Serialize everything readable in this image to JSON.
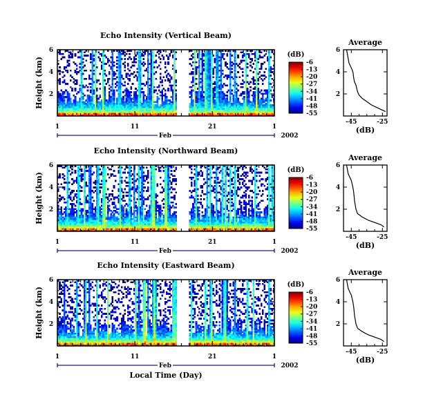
{
  "figure": {
    "background": "#ffffff"
  },
  "chart_data": [
    {
      "type": "heatmap",
      "title": "Echo Intensity (Vertical Beam)",
      "ylabel": "Height (km)",
      "y_ticks": [
        "6",
        "4",
        "2"
      ],
      "ylim": [
        0,
        6
      ],
      "x_ticks": [
        "1",
        "11",
        "21",
        "1"
      ],
      "x_month_label": "Feb",
      "year_label": "2002",
      "xlabel": "",
      "colorbar": {
        "unit": "(dB)",
        "ticks": [
          "-6",
          "-13",
          "-20",
          "-27",
          "-34",
          "-41",
          "-48",
          "-55"
        ],
        "range": [
          -55,
          -6
        ],
        "colormap": "jet"
      },
      "data_gap_days": [
        15.5,
        17.0
      ],
      "average_profile": {
        "title": "Average",
        "xlabel": "(dB)",
        "x_ticks": [
          "-45",
          "-25"
        ],
        "y_ticks": [
          "6",
          "4",
          "2"
        ],
        "xlim": [
          -50,
          -22
        ],
        "ylim": [
          0,
          6
        ],
        "points": [
          [
            -48,
            6.0
          ],
          [
            -47.5,
            5.6
          ],
          [
            -47,
            5.2
          ],
          [
            -46.5,
            4.8
          ],
          [
            -45.5,
            4.5
          ],
          [
            -44.5,
            4.2
          ],
          [
            -43.8,
            3.9
          ],
          [
            -43.5,
            3.5
          ],
          [
            -43,
            3.1
          ],
          [
            -42,
            2.8
          ],
          [
            -41.5,
            2.5
          ],
          [
            -41,
            2.2
          ],
          [
            -40,
            1.9
          ],
          [
            -38,
            1.6
          ],
          [
            -35,
            1.3
          ],
          [
            -32,
            1.0
          ],
          [
            -29,
            0.8
          ],
          [
            -26,
            0.6
          ],
          [
            -23,
            0.4
          ]
        ]
      }
    },
    {
      "type": "heatmap",
      "title": "Echo Intensity (Northward Beam)",
      "ylabel": "Height (km)",
      "y_ticks": [
        "6",
        "4",
        "2"
      ],
      "ylim": [
        0,
        6
      ],
      "x_ticks": [
        "1",
        "11",
        "21",
        "1"
      ],
      "x_month_label": "Feb",
      "year_label": "2002",
      "xlabel": "",
      "colorbar": {
        "unit": "(dB)",
        "ticks": [
          "-6",
          "-13",
          "-20",
          "-27",
          "-34",
          "-41",
          "-48",
          "-55"
        ],
        "range": [
          -55,
          -6
        ],
        "colormap": "jet"
      },
      "data_gap_days": [
        15.5,
        17.0
      ],
      "average_profile": {
        "title": "Average",
        "xlabel": "(dB)",
        "x_ticks": [
          "-45",
          "-25"
        ],
        "y_ticks": [
          "6",
          "4",
          "2"
        ],
        "xlim": [
          -50,
          -22
        ],
        "ylim": [
          0,
          6
        ],
        "points": [
          [
            -48,
            6.0
          ],
          [
            -47.5,
            5.6
          ],
          [
            -47,
            5.2
          ],
          [
            -46,
            4.9
          ],
          [
            -45,
            4.6
          ],
          [
            -44.5,
            4.3
          ],
          [
            -44,
            4.0
          ],
          [
            -43.5,
            3.6
          ],
          [
            -43.2,
            3.2
          ],
          [
            -43,
            2.8
          ],
          [
            -42.5,
            2.4
          ],
          [
            -42,
            2.0
          ],
          [
            -41,
            1.6
          ],
          [
            -38,
            1.3
          ],
          [
            -34,
            1.0
          ],
          [
            -30,
            0.8
          ],
          [
            -26,
            0.6
          ],
          [
            -24,
            0.4
          ]
        ]
      }
    },
    {
      "type": "heatmap",
      "title": "Echo Intensity (Eastward Beam)",
      "ylabel": "Height (km)",
      "y_ticks": [
        "6",
        "4",
        "2"
      ],
      "ylim": [
        0,
        6
      ],
      "x_ticks": [
        "1",
        "11",
        "21",
        "1"
      ],
      "x_month_label": "Feb",
      "year_label": "2002",
      "xlabel": "Local Time (Day)",
      "colorbar": {
        "unit": "(dB)",
        "ticks": [
          "-6",
          "-13",
          "-20",
          "-27",
          "-34",
          "-41",
          "-48",
          "-55"
        ],
        "range": [
          -55,
          -6
        ],
        "colormap": "jet"
      },
      "data_gap_days": [
        15.5,
        17.0
      ],
      "average_profile": {
        "title": "Average",
        "xlabel": "(dB)",
        "x_ticks": [
          "-45",
          "-25"
        ],
        "y_ticks": [
          "6",
          "4",
          "2"
        ],
        "xlim": [
          -50,
          -22
        ],
        "ylim": [
          0,
          6
        ],
        "points": [
          [
            -48,
            6.0
          ],
          [
            -47.5,
            5.6
          ],
          [
            -47,
            5.2
          ],
          [
            -46,
            4.9
          ],
          [
            -45,
            4.6
          ],
          [
            -44.5,
            4.3
          ],
          [
            -44,
            4.0
          ],
          [
            -43.5,
            3.6
          ],
          [
            -43.2,
            3.2
          ],
          [
            -43,
            2.8
          ],
          [
            -42.5,
            2.4
          ],
          [
            -42,
            2.0
          ],
          [
            -41,
            1.6
          ],
          [
            -38,
            1.3
          ],
          [
            -34,
            1.0
          ],
          [
            -30,
            0.8
          ],
          [
            -26,
            0.6
          ],
          [
            -24,
            0.4
          ]
        ]
      }
    }
  ]
}
